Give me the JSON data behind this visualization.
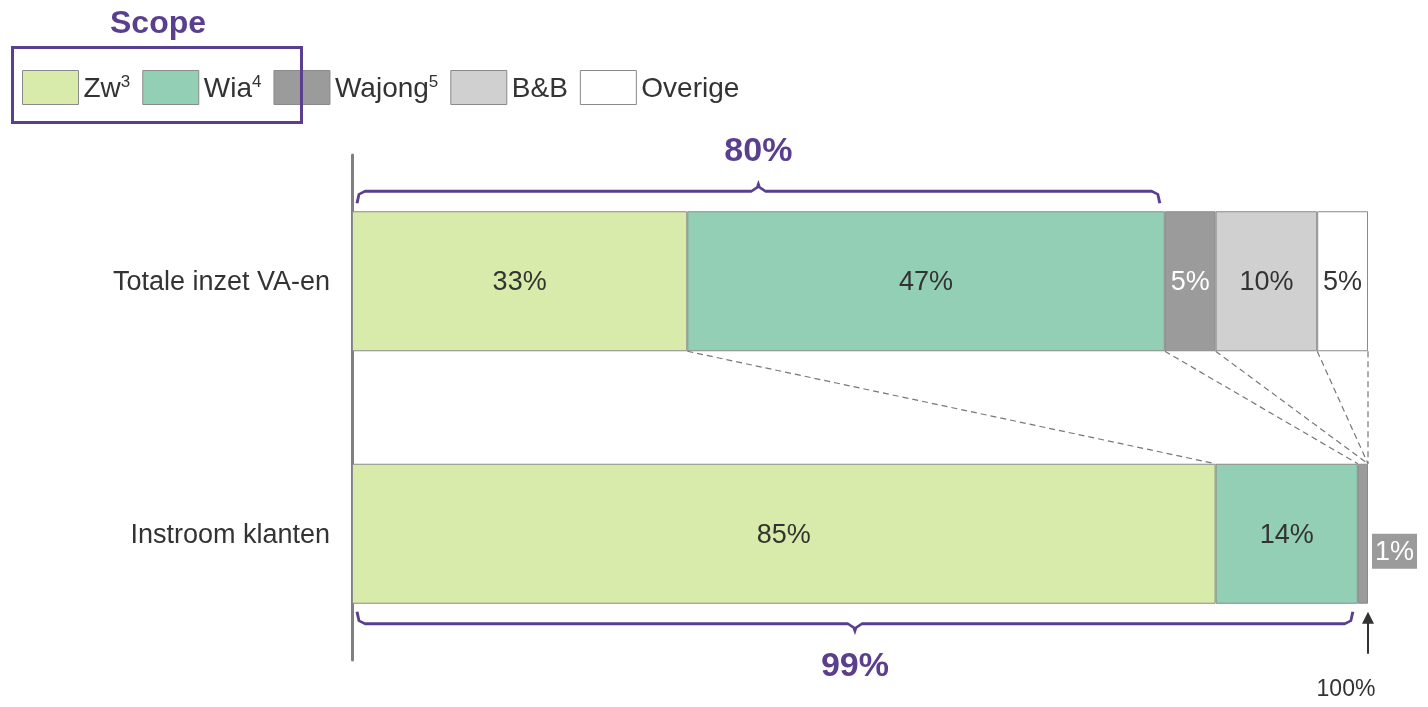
{
  "chart_data": {
    "type": "bar",
    "orientation": "horizontal",
    "stacked": true,
    "legend": "top left",
    "legend_title": "Scope",
    "categories": [
      "Totale inzet VA-en",
      "Instroom klanten"
    ],
    "series": [
      {
        "name": "Zw$^{3}$",
        "color": "#d9ebaa",
        "values": [
          33,
          85
        ],
        "value_labels": [
          "33%",
          "85%"
        ]
      },
      {
        "name": "Wia$^{4}$",
        "color": "#93cfb5",
        "values": [
          47,
          14
        ],
        "value_labels": [
          "47%",
          "14%"
        ]
      },
      {
        "name": "Wajong$^{5}$",
        "color": "#9b9b9b",
        "values": [
          5,
          1
        ],
        "value_labels": [
          "5%",
          "1%"
        ]
      },
      {
        "name": "B&B",
        "color": "#d0d0d0",
        "values": [
          10,
          0
        ],
        "value_labels": [
          "10%",
          null
        ]
      },
      {
        "name": "Overige",
        "color": "#ffffff",
        "values": [
          5,
          0
        ],
        "value_labels": [
          "5%",
          null
        ]
      }
    ],
    "annotations": [
      "80%",
      "99%",
      "100%"
    ]
  }
}
